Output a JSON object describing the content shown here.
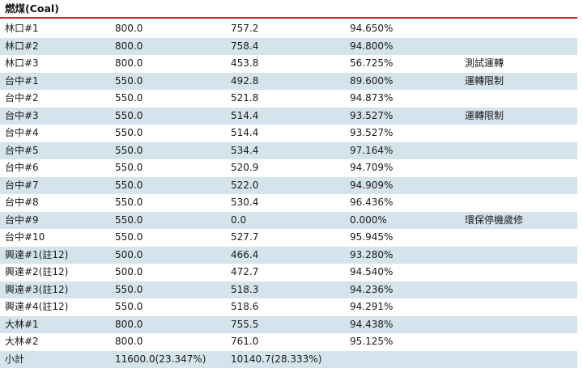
{
  "section": {
    "title": "燃煤(Coal)"
  },
  "rows": [
    {
      "unit": "林口#1",
      "capacity": "800.0",
      "net": "757.2",
      "rate": "94.650%",
      "note": ""
    },
    {
      "unit": "林口#2",
      "capacity": "800.0",
      "net": "758.4",
      "rate": "94.800%",
      "note": ""
    },
    {
      "unit": "林口#3",
      "capacity": "800.0",
      "net": "453.8",
      "rate": "56.725%",
      "note": "測試運轉"
    },
    {
      "unit": "台中#1",
      "capacity": "550.0",
      "net": "492.8",
      "rate": "89.600%",
      "note": "運轉限制"
    },
    {
      "unit": "台中#2",
      "capacity": "550.0",
      "net": "521.8",
      "rate": "94.873%",
      "note": ""
    },
    {
      "unit": "台中#3",
      "capacity": "550.0",
      "net": "514.4",
      "rate": "93.527%",
      "note": "運轉限制"
    },
    {
      "unit": "台中#4",
      "capacity": "550.0",
      "net": "514.4",
      "rate": "93.527%",
      "note": ""
    },
    {
      "unit": "台中#5",
      "capacity": "550.0",
      "net": "534.4",
      "rate": "97.164%",
      "note": ""
    },
    {
      "unit": "台中#6",
      "capacity": "550.0",
      "net": "520.9",
      "rate": "94.709%",
      "note": ""
    },
    {
      "unit": "台中#7",
      "capacity": "550.0",
      "net": "522.0",
      "rate": "94.909%",
      "note": ""
    },
    {
      "unit": "台中#8",
      "capacity": "550.0",
      "net": "530.4",
      "rate": "96.436%",
      "note": ""
    },
    {
      "unit": "台中#9",
      "capacity": "550.0",
      "net": "0.0",
      "rate": "0.000%",
      "note": "環保停機歲修"
    },
    {
      "unit": "台中#10",
      "capacity": "550.0",
      "net": "527.7",
      "rate": "95.945%",
      "note": ""
    },
    {
      "unit": "興達#1(註12)",
      "capacity": "500.0",
      "net": "466.4",
      "rate": "93.280%",
      "note": ""
    },
    {
      "unit": "興達#2(註12)",
      "capacity": "500.0",
      "net": "472.7",
      "rate": "94.540%",
      "note": ""
    },
    {
      "unit": "興達#3(註12)",
      "capacity": "550.0",
      "net": "518.3",
      "rate": "94.236%",
      "note": ""
    },
    {
      "unit": "興達#4(註12)",
      "capacity": "550.0",
      "net": "518.6",
      "rate": "94.291%",
      "note": ""
    },
    {
      "unit": "大林#1",
      "capacity": "800.0",
      "net": "755.5",
      "rate": "94.438%",
      "note": ""
    },
    {
      "unit": "大林#2",
      "capacity": "800.0",
      "net": "761.0",
      "rate": "95.125%",
      "note": ""
    },
    {
      "unit": "小計",
      "capacity": "11600.0(23.347%)",
      "net": "10140.7(28.333%)",
      "rate": "",
      "note": ""
    }
  ]
}
